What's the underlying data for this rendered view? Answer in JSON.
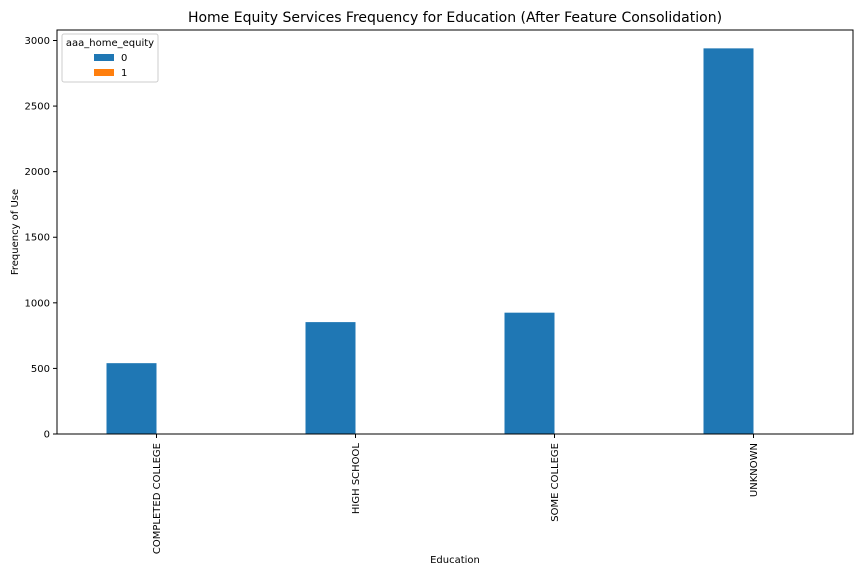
{
  "chart_data": {
    "type": "bar",
    "title": "Home Equity Services Frequency for Education  (After Feature Consolidation)",
    "xlabel": "Education",
    "ylabel": "Frequency of Use",
    "categories": [
      "COMPLETED COLLEGE",
      "HIGH SCHOOL",
      "SOME COLLEGE",
      "UNKNOWN"
    ],
    "series": [
      {
        "name": "0",
        "values": [
          540,
          853,
          925,
          2940
        ],
        "color": "#1f77b4"
      },
      {
        "name": "1",
        "values": [
          0,
          0,
          0,
          0
        ],
        "color": "#ff7f0e"
      }
    ],
    "ylim": [
      0,
      3080
    ],
    "yticks": [
      "0",
      "500",
      "1000",
      "1500",
      "2000",
      "2500",
      "3000"
    ],
    "legend": {
      "title": "aaa_home_equity",
      "position": "top-left"
    },
    "grid": false
  }
}
